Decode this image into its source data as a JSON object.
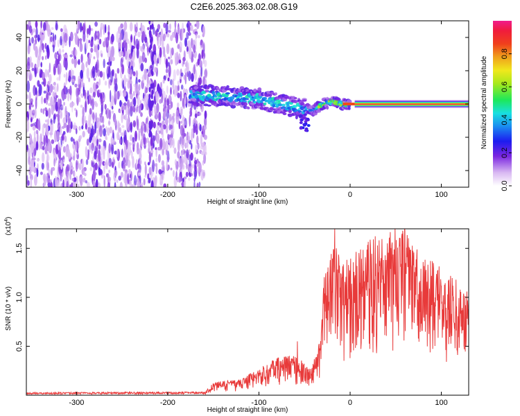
{
  "figure_title": "C2E6.2025.363.02.08.G19",
  "chart_data": [
    {
      "type": "heatmap",
      "xlabel": "Height of straight line (km)",
      "ylabel": "Frequency (Hz)",
      "xlim": [
        -355,
        130
      ],
      "ylim": [
        -50,
        50
      ],
      "x_ticks": [
        -300,
        -200,
        -100,
        0,
        100
      ],
      "x_tick_labels": [
        "-300",
        "-200",
        "-100",
        "0",
        "100"
      ],
      "y_ticks": [
        -40,
        -20,
        0,
        20,
        40
      ],
      "y_tick_labels": [
        "-40",
        "-20",
        "0",
        "20",
        "40"
      ],
      "colorbar": {
        "label": "Normalized spectral amplitude",
        "range": [
          0,
          1
        ],
        "ticks": [
          0.0,
          0.2,
          0.4,
          0.6,
          0.8
        ],
        "tick_labels": [
          "0.0",
          "0.2",
          "0.4",
          "0.6",
          "0.8"
        ]
      },
      "regions": [
        {
          "x_range": [
            -355,
            -158
          ],
          "freq_range": [
            -50,
            48
          ],
          "amplitude": "0.05-0.25",
          "note": "broadband noise"
        },
        {
          "x_range": [
            -175,
            -40
          ],
          "freq_center": [
            5,
            2,
            0,
            -4
          ],
          "amplitude": "0.2-0.45"
        },
        {
          "x_range": [
            -40,
            0
          ],
          "freq_center": [
            -3,
            0,
            2
          ],
          "amplitude": "0.3-0.6"
        },
        {
          "x_range": [
            5,
            130
          ],
          "freq_center": 0,
          "amplitude": "0.95-1.0"
        }
      ],
      "grid": false
    },
    {
      "type": "line",
      "xlabel": "Height of straight line (km)",
      "ylabel": "SNR (10 * v/v)",
      "y_scale_label": "(x10",
      "y_scale_exponent": "4",
      "y_scale_suffix": ")",
      "xlim": [
        -355,
        130
      ],
      "ylim": [
        0,
        17000
      ],
      "x_ticks": [
        -300,
        -200,
        -100,
        0,
        100
      ],
      "x_tick_labels": [
        "-300",
        "-200",
        "-100",
        "0",
        "100"
      ],
      "y_ticks": [
        5000,
        10000,
        15000
      ],
      "y_tick_labels": [
        "0.5",
        "1.0",
        "1.5"
      ],
      "series": [
        {
          "color": "#e83a3a",
          "envelope": {
            "x": [
              -355,
              -160,
              -150,
              -120,
              -100,
              -80,
              -60,
              -45,
              -35,
              -28,
              -22,
              -15,
              -10,
              0,
              20,
              40,
              60,
              70,
              80,
              100,
              120,
              130
            ],
            "y": [
              200,
              250,
              1200,
              1500,
              2500,
              3500,
              3800,
              2500,
              4000,
              12000,
              13500,
              15500,
              12000,
              13000,
              14500,
              15500,
              15700,
              14000,
              13000,
              12000,
              10500,
              9500
            ]
          },
          "spikes": [
            {
              "x": -17,
              "y": 17000
            },
            {
              "x": -25,
              "y": 12600
            },
            {
              "x": -58,
              "y": 5500
            }
          ]
        }
      ],
      "grid": false
    }
  ]
}
